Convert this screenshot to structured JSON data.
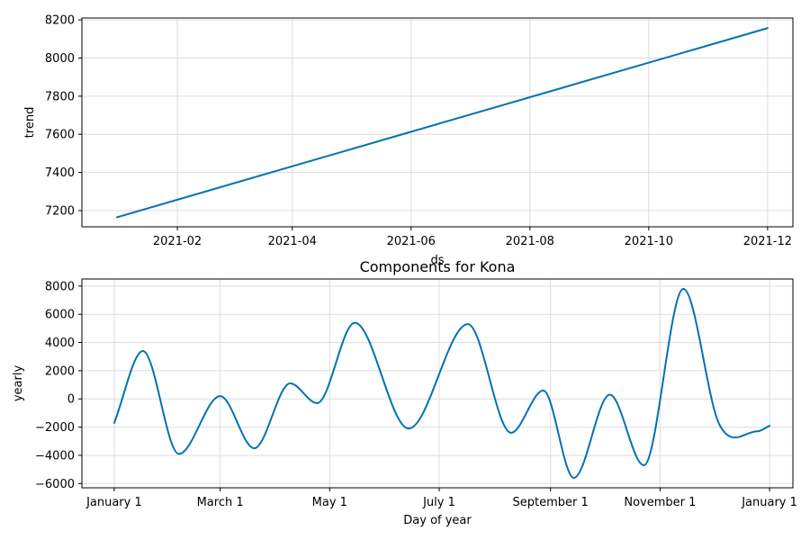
{
  "colors": {
    "series": "#0072B2",
    "grid": "#dcdcdc"
  },
  "chart_data": [
    {
      "type": "line",
      "title": "",
      "xlabel": "ds",
      "ylabel": "trend",
      "grid": true,
      "xlim": [
        "2020-12-14",
        "2021-12-14"
      ],
      "ylim": [
        7115,
        8210
      ],
      "xticks": [
        {
          "value": "2021-02-01",
          "label": "2021-02"
        },
        {
          "value": "2021-04-01",
          "label": "2021-04"
        },
        {
          "value": "2021-06-01",
          "label": "2021-06"
        },
        {
          "value": "2021-08-01",
          "label": "2021-08"
        },
        {
          "value": "2021-10-01",
          "label": "2021-10"
        },
        {
          "value": "2021-12-01",
          "label": "2021-12"
        }
      ],
      "yticks": [
        7200,
        7400,
        7600,
        7800,
        8000,
        8200
      ],
      "series": [
        {
          "x": [
            "2021-01-01",
            "2021-12-01"
          ],
          "y": [
            7165,
            8157
          ]
        }
      ]
    },
    {
      "type": "line",
      "title": "Components for Kona",
      "xlabel": "Day of year",
      "ylabel": "yearly",
      "grid": true,
      "xlim": [
        "2016-12-14",
        "2018-01-14"
      ],
      "ylim": [
        -6300,
        8500
      ],
      "xticks": [
        {
          "value": "2017-01-01",
          "label": "January 1"
        },
        {
          "value": "2017-03-01",
          "label": "March 1"
        },
        {
          "value": "2017-05-01",
          "label": "May 1"
        },
        {
          "value": "2017-07-01",
          "label": "July 1"
        },
        {
          "value": "2017-09-01",
          "label": "September 1"
        },
        {
          "value": "2017-11-01",
          "label": "November 1"
        },
        {
          "value": "2018-01-01",
          "label": "January 1"
        }
      ],
      "yticks": [
        -6000,
        -4000,
        -2000,
        0,
        2000,
        4000,
        6000,
        8000
      ],
      "series": [
        {
          "x": [
            "2017-01-01",
            "2017-01-17",
            "2017-02-06",
            "2017-03-01",
            "2017-03-20",
            "2017-04-09",
            "2017-04-24",
            "2017-05-15",
            "2017-06-14",
            "2017-07-17",
            "2017-08-10",
            "2017-08-28",
            "2017-09-14",
            "2017-10-04",
            "2017-10-23",
            "2017-11-14",
            "2017-12-04",
            "2017-12-25",
            "2018-01-01"
          ],
          "y": [
            -1700,
            3400,
            -3900,
            200,
            -3500,
            1100,
            -300,
            5400,
            -2100,
            5300,
            -2400,
            600,
            -5600,
            300,
            -4700,
            7800,
            -1800,
            -2300,
            -1900
          ]
        }
      ]
    }
  ]
}
